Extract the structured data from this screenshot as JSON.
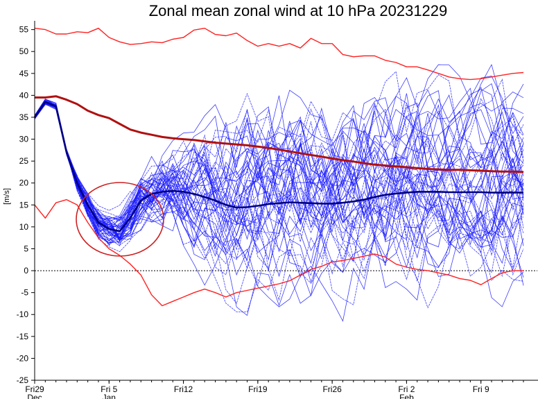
{
  "chart_data": {
    "type": "line",
    "title": "Zonal mean zonal wind at 10 hPa 20231229",
    "ylabel": "[m/s]",
    "xlabel": "",
    "ylim": [
      -25,
      57
    ],
    "xlim": [
      0,
      46
    ],
    "yticks": [
      55,
      50,
      45,
      40,
      35,
      30,
      25,
      20,
      15,
      10,
      5,
      0,
      -5,
      -10,
      -15,
      -20,
      -25
    ],
    "xticks": [
      {
        "x": 0,
        "label": "Fri29",
        "sublabel": "Dec"
      },
      {
        "x": 7,
        "label": "Fri 5",
        "sublabel": "Jan"
      },
      {
        "x": 14,
        "label": "Fri12",
        "sublabel": ""
      },
      {
        "x": 21,
        "label": "Fri19",
        "sublabel": ""
      },
      {
        "x": 28,
        "label": "Fri26",
        "sublabel": ""
      },
      {
        "x": 35,
        "label": "Fri 2",
        "sublabel": "Feb"
      },
      {
        "x": 42,
        "label": "Fri 9",
        "sublabel": ""
      }
    ],
    "zero_line": true,
    "colors": {
      "ensemble": "#1a1aff",
      "ens_mean": "#000080",
      "climo_mean": "#b01010",
      "climo_extreme": "#ff2020",
      "highlight_circle": "#cc2020"
    },
    "x": [
      0,
      1,
      2,
      3,
      4,
      5,
      6,
      7,
      8,
      9,
      10,
      11,
      12,
      13,
      14,
      15,
      16,
      17,
      18,
      19,
      20,
      21,
      22,
      23,
      24,
      25,
      26,
      27,
      28,
      29,
      30,
      31,
      32,
      33,
      34,
      35,
      36,
      37,
      38,
      39,
      40,
      41,
      42,
      43,
      44,
      45,
      46
    ],
    "series": [
      {
        "role": "climo_max",
        "values": [
          55.3,
          55,
          54,
          54,
          54.5,
          54.3,
          55.3,
          53.2,
          52.2,
          51.6,
          51.8,
          52.2,
          52,
          52.8,
          53.2,
          54.9,
          55.3,
          53.9,
          53.6,
          54.2,
          52.5,
          51.2,
          51.8,
          51.2,
          51.8,
          50.8,
          53,
          51.8,
          51.8,
          49.3,
          48.8,
          49,
          49,
          48,
          47.5,
          46.5,
          46.5,
          45.8,
          45,
          44.2,
          43.8,
          43.6,
          43.8,
          44.2,
          44.6,
          45,
          45.2
        ]
      },
      {
        "role": "climo_mean",
        "values": [
          39.5,
          39.5,
          39.8,
          39,
          38,
          36.5,
          35.5,
          34.8,
          33.5,
          32.2,
          31.5,
          31,
          30.5,
          30.2,
          30,
          29.8,
          29.5,
          29.2,
          29,
          28.8,
          28.6,
          28.3,
          28,
          27.6,
          27.2,
          26.8,
          26.4,
          26,
          25.6,
          25.2,
          24.9,
          24.5,
          24.2,
          24,
          23.8,
          23.6,
          23.4,
          23.2,
          23.1,
          23,
          23,
          22.9,
          22.8,
          22.7,
          22.6,
          22.6,
          22.5
        ]
      },
      {
        "role": "climo_min",
        "values": [
          15,
          12,
          15.5,
          16.2,
          15,
          11,
          7.5,
          5,
          3.5,
          1.5,
          -1,
          -5.5,
          -8,
          -7,
          -6,
          -5,
          -4.2,
          -5,
          -6,
          -5,
          -4.5,
          -4,
          -3.5,
          -3,
          -2.3,
          -1,
          0.3,
          1,
          2,
          2.3,
          2.8,
          3.3,
          3.8,
          3.1,
          1.5,
          0.8,
          0.3,
          0,
          -0.5,
          -1,
          -1.8,
          -2.2,
          -3.2,
          -1.8,
          -0.5,
          0,
          0
        ]
      },
      {
        "role": "ens_mean",
        "values": [
          35,
          38.5,
          37.5,
          27,
          20,
          15,
          11,
          9.5,
          9,
          12,
          16,
          17.5,
          18,
          18.2,
          18,
          17.5,
          16.8,
          16,
          15,
          14.4,
          14.5,
          14.8,
          15.2,
          15.4,
          15.6,
          15.5,
          15.4,
          15.3,
          15.3,
          15.5,
          15.8,
          16.2,
          16.8,
          17.3,
          17.6,
          17.8,
          18,
          18,
          18,
          17.9,
          17.9,
          17.9,
          17.9,
          17.8,
          17.8,
          17.8,
          17.8
        ]
      }
    ],
    "ensemble_count": 50,
    "annotation": "circle highlighting early-January minimum"
  }
}
